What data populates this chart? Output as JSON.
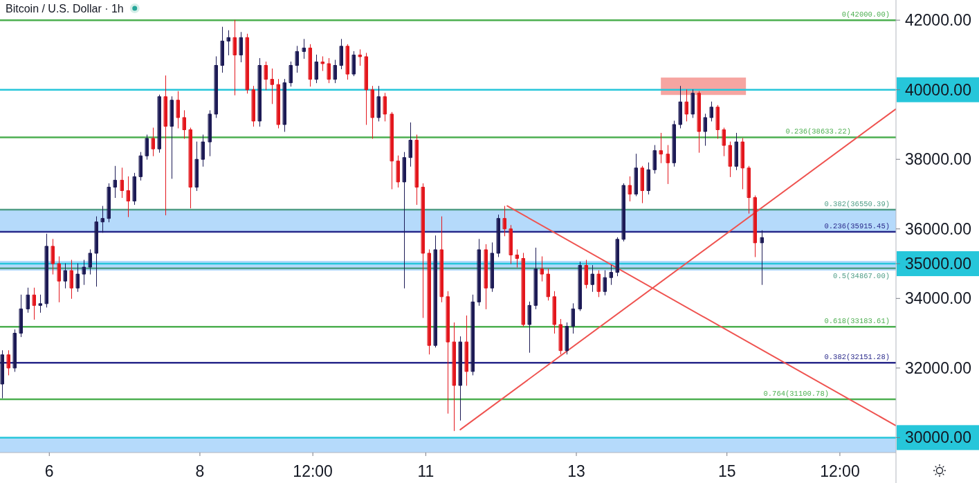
{
  "chart_data": {
    "type": "candlestick",
    "title": "Bitcoin / U.S. Dollar · 1h",
    "x": [
      "--01-05T09:00",
      "--01-05T11:00",
      "--01-05T13:00",
      "--01-05T15:00",
      "--01-05T17:00",
      "--01-05T19:00",
      "--01-05T21:00",
      "--01-05T23:00",
      "--01-06T01:00",
      "--01-06T03:00",
      "--01-06T05:00",
      "--01-06T07:00",
      "--01-06T09:00",
      "--01-06T11:00",
      "--01-06T13:00",
      "--01-06T15:00",
      "--01-06T17:00",
      "--01-06T19:00",
      "--01-06T21:00",
      "--01-06T23:00",
      "--01-07T01:00",
      "--01-07T03:00",
      "--01-07T05:00",
      "--01-07T07:00",
      "--01-07T09:00",
      "--01-07T11:00",
      "--01-07T13:00",
      "--01-07T15:00",
      "--01-07T17:00",
      "--01-07T19:00",
      "--01-07T21:00",
      "--01-07T23:00",
      "--01-08T01:00",
      "--01-08T03:00",
      "--01-08T05:00",
      "--01-08T07:00",
      "--01-08T09:00",
      "--01-08T11:00",
      "--01-08T13:00",
      "--01-08T15:00",
      "--01-08T17:00",
      "--01-08T19:00",
      "--01-08T21:00",
      "--01-08T23:00",
      "--01-09T01:00",
      "--01-09T03:00",
      "--01-09T05:00",
      "--01-09T07:00",
      "--01-09T09:00",
      "--01-09T11:00",
      "--01-09T13:00",
      "--01-09T15:00",
      "--01-09T17:00",
      "--01-09T19:00",
      "--01-09T21:00",
      "--01-09T23:00",
      "--01-10T01:00",
      "--01-10T03:00",
      "--01-10T05:00",
      "--01-10T07:00",
      "--01-10T09:00",
      "--01-10T11:00",
      "--01-10T13:00",
      "--01-10T15:00",
      "--01-10T17:00",
      "--01-10T19:00",
      "--01-10T21:00",
      "--01-10T23:00",
      "--01-11T01:00",
      "--01-11T03:00",
      "--01-11T05:00",
      "--01-11T07:00",
      "--01-11T09:00",
      "--01-11T11:00",
      "--01-11T13:00",
      "--01-11T15:00",
      "--01-11T17:00",
      "--01-11T19:00",
      "--01-11T21:00",
      "--01-11T23:00",
      "--01-12T01:00",
      "--01-12T03:00",
      "--01-12T05:00",
      "--01-12T07:00",
      "--01-12T09:00",
      "--01-12T11:00",
      "--01-12T13:00",
      "--01-12T15:00",
      "--01-12T17:00",
      "--01-12T19:00",
      "--01-12T21:00",
      "--01-12T23:00",
      "--01-13T01:00",
      "--01-13T03:00",
      "--01-13T05:00",
      "--01-13T07:00",
      "--01-13T09:00",
      "--01-13T11:00",
      "--01-13T13:00",
      "--01-13T15:00",
      "--01-13T17:00",
      "--01-13T19:00",
      "--01-13T21:00",
      "--01-13T23:00",
      "--01-14T01:00",
      "--01-14T03:00",
      "--01-14T05:00",
      "--01-14T07:00",
      "--01-14T09:00",
      "--01-14T11:00",
      "--01-14T13:00",
      "--01-14T15:00",
      "--01-14T17:00",
      "--01-14T19:00",
      "--01-14T21:00",
      "--01-14T23:00",
      "--01-15T01:00",
      "--01-15T03:00",
      "--01-15T05:00",
      "--01-15T07:00",
      "--01-15T09:00",
      "--01-15T11:00"
    ],
    "ohlc": [
      [
        31540,
        32500,
        31140,
        32380
      ],
      [
        32380,
        32500,
        31800,
        32000
      ],
      [
        32000,
        33100,
        31900,
        33000
      ],
      [
        33000,
        34100,
        32900,
        33700
      ],
      [
        33700,
        34300,
        33600,
        34100
      ],
      [
        34100,
        34300,
        33400,
        33800
      ],
      [
        33800,
        34100,
        33600,
        33850
      ],
      [
        33850,
        35850,
        33750,
        35500
      ],
      [
        35500,
        35700,
        34700,
        35000
      ],
      [
        35000,
        35200,
        33900,
        34500
      ],
      [
        34500,
        35000,
        34300,
        34800
      ],
      [
        34800,
        35100,
        34000,
        34300
      ],
      [
        34300,
        35000,
        34200,
        34700
      ],
      [
        34700,
        35100,
        34400,
        34900
      ],
      [
        34900,
        35400,
        34700,
        35300
      ],
      [
        35300,
        36350,
        34350,
        36200
      ],
      [
        36200,
        36650,
        35900,
        36300
      ],
      [
        36300,
        37300,
        36200,
        37200
      ],
      [
        37200,
        37800,
        36900,
        37400
      ],
      [
        37400,
        37750,
        36900,
        37100
      ],
      [
        37100,
        37500,
        36350,
        36800
      ],
      [
        36800,
        37600,
        36700,
        37500
      ],
      [
        37500,
        38200,
        37400,
        38100
      ],
      [
        38100,
        38700,
        38000,
        38600
      ],
      [
        38600,
        38900,
        38100,
        38300
      ],
      [
        38300,
        39850,
        38200,
        39800
      ],
      [
        39800,
        40400,
        36400,
        38950
      ],
      [
        38950,
        39800,
        37450,
        39700
      ],
      [
        39700,
        39950,
        38900,
        39200
      ],
      [
        39200,
        39400,
        38600,
        38850
      ],
      [
        38850,
        38900,
        36600,
        37200
      ],
      [
        37200,
        38500,
        37100,
        38000
      ],
      [
        38000,
        38700,
        37800,
        38500
      ],
      [
        38500,
        39400,
        38100,
        39300
      ],
      [
        39300,
        40950,
        39200,
        40700
      ],
      [
        40700,
        41800,
        40500,
        41400
      ],
      [
        41400,
        41700,
        41000,
        41500
      ],
      [
        41500,
        42000,
        39850,
        41000
      ],
      [
        41000,
        41650,
        40800,
        41500
      ],
      [
        41500,
        41600,
        39900,
        40000
      ],
      [
        40000,
        40100,
        38950,
        39100
      ],
      [
        39100,
        40900,
        38950,
        40700
      ],
      [
        40700,
        40800,
        40000,
        40300
      ],
      [
        40300,
        40600,
        39600,
        40150
      ],
      [
        40150,
        40300,
        38900,
        39000
      ],
      [
        39000,
        40300,
        38800,
        40200
      ],
      [
        40200,
        40800,
        40100,
        40700
      ],
      [
        40700,
        41250,
        40500,
        41100
      ],
      [
        41100,
        41450,
        40900,
        41200
      ],
      [
        41200,
        41300,
        40100,
        40300
      ],
      [
        40300,
        41000,
        40200,
        40800
      ],
      [
        40800,
        40950,
        40550,
        40750
      ],
      [
        40750,
        40900,
        40200,
        40300
      ],
      [
        40300,
        40850,
        40200,
        40700
      ],
      [
        40700,
        41450,
        40600,
        41250
      ],
      [
        41250,
        41300,
        40300,
        40450
      ],
      [
        40450,
        41100,
        40400,
        41000
      ],
      [
        41000,
        41150,
        40700,
        40950
      ],
      [
        40950,
        41050,
        39000,
        40000
      ],
      [
        40000,
        40100,
        38600,
        39200
      ],
      [
        39200,
        40100,
        39100,
        39800
      ],
      [
        39800,
        39900,
        39100,
        39300
      ],
      [
        39300,
        39350,
        37150,
        37950
      ],
      [
        37950,
        38100,
        37200,
        37350
      ],
      [
        37350,
        38200,
        34300,
        38050
      ],
      [
        38050,
        39050,
        37800,
        38550
      ],
      [
        38550,
        38700,
        36700,
        37200
      ],
      [
        37200,
        37300,
        33450,
        35300
      ],
      [
        35300,
        35400,
        32400,
        32650
      ],
      [
        32650,
        35800,
        32600,
        35400
      ],
      [
        35400,
        36350,
        33900,
        34050
      ],
      [
        34050,
        34200,
        30700,
        32750
      ],
      [
        32750,
        33300,
        30200,
        31500
      ],
      [
        31500,
        32900,
        30500,
        32750
      ],
      [
        32750,
        33500,
        31500,
        31900
      ],
      [
        31900,
        34100,
        31800,
        33900
      ],
      [
        33900,
        35700,
        33800,
        35400
      ],
      [
        35400,
        35550,
        33700,
        34300
      ],
      [
        34300,
        35600,
        34200,
        35300
      ],
      [
        35300,
        36400,
        35200,
        36300
      ],
      [
        36300,
        36650,
        35800,
        36000
      ],
      [
        36000,
        36100,
        35000,
        35250
      ],
      [
        35250,
        35400,
        34900,
        35150
      ],
      [
        35150,
        35300,
        33200,
        33250
      ],
      [
        33250,
        33900,
        32450,
        33800
      ],
      [
        33800,
        35450,
        33700,
        34850
      ],
      [
        34850,
        35200,
        34500,
        34700
      ],
      [
        34700,
        34850,
        33950,
        34050
      ],
      [
        34050,
        34200,
        33000,
        33250
      ],
      [
        33250,
        33400,
        32400,
        32500
      ],
      [
        32500,
        33300,
        32400,
        33200
      ],
      [
        33200,
        33850,
        33000,
        33700
      ],
      [
        33700,
        35050,
        33650,
        34950
      ],
      [
        34950,
        35100,
        34300,
        34400
      ],
      [
        34400,
        34950,
        34200,
        34700
      ],
      [
        34700,
        34800,
        34050,
        34200
      ],
      [
        34200,
        34800,
        34100,
        34600
      ],
      [
        34600,
        34950,
        34400,
        34750
      ],
      [
        34750,
        35750,
        34650,
        35700
      ],
      [
        35700,
        37300,
        35650,
        37250
      ],
      [
        37250,
        37500,
        36800,
        37000
      ],
      [
        37000,
        38150,
        36950,
        37750
      ],
      [
        37750,
        37800,
        36750,
        37100
      ],
      [
        37100,
        37900,
        37000,
        37700
      ],
      [
        37700,
        38400,
        37600,
        38250
      ],
      [
        38250,
        38750,
        37900,
        38150
      ],
      [
        38150,
        38400,
        37300,
        37900
      ],
      [
        37900,
        39100,
        37800,
        39000
      ],
      [
        39000,
        40100,
        38900,
        39650
      ],
      [
        39650,
        40000,
        39100,
        39300
      ],
      [
        39300,
        40000,
        39200,
        39900
      ],
      [
        39900,
        39950,
        38200,
        38800
      ],
      [
        38800,
        39300,
        38400,
        39200
      ],
      [
        39200,
        39650,
        39100,
        39500
      ],
      [
        39500,
        39550,
        38600,
        38850
      ],
      [
        38850,
        38900,
        38100,
        38400
      ],
      [
        38400,
        38500,
        37500,
        37800
      ],
      [
        37800,
        38750,
        37700,
        38500
      ],
      [
        38500,
        38600,
        37150,
        37750
      ],
      [
        37750,
        37800,
        36450,
        36900
      ],
      [
        36900,
        36950,
        35200,
        35600
      ],
      [
        35600,
        35950,
        34400,
        35750
      ]
    ],
    "colors": [
      "#1c1a55",
      "#e3161c",
      "#1c1a55",
      "#1c1a55",
      "#1c1a55",
      "#e3161c",
      "#1c1a55",
      "#1c1a55",
      "#e3161c",
      "#e3161c",
      "#1c1a55",
      "#e3161c",
      "#1c1a55",
      "#1c1a55",
      "#1c1a55",
      "#1c1a55",
      "#1c1a55",
      "#1c1a55",
      "#1c1a55",
      "#e3161c",
      "#e3161c",
      "#1c1a55",
      "#1c1a55",
      "#1c1a55",
      "#e3161c",
      "#1c1a55",
      "#e3161c",
      "#1c1a55",
      "#e3161c",
      "#e3161c",
      "#e3161c",
      "#1c1a55",
      "#1c1a55",
      "#1c1a55",
      "#1c1a55",
      "#1c1a55",
      "#1c1a55",
      "#e3161c",
      "#1c1a55",
      "#e3161c",
      "#e3161c",
      "#1c1a55",
      "#e3161c",
      "#e3161c",
      "#e3161c",
      "#1c1a55",
      "#1c1a55",
      "#1c1a55",
      "#1c1a55",
      "#e3161c",
      "#1c1a55",
      "#e3161c",
      "#e3161c",
      "#1c1a55",
      "#1c1a55",
      "#e3161c",
      "#1c1a55",
      "#e3161c",
      "#e3161c",
      "#e3161c",
      "#1c1a55",
      "#e3161c",
      "#e3161c",
      "#e3161c",
      "#1c1a55",
      "#1c1a55",
      "#e3161c",
      "#e3161c",
      "#e3161c",
      "#1c1a55",
      "#e3161c",
      "#e3161c",
      "#e3161c",
      "#1c1a55",
      "#e3161c",
      "#1c1a55",
      "#1c1a55",
      "#e3161c",
      "#1c1a55",
      "#1c1a55",
      "#e3161c",
      "#e3161c",
      "#e3161c",
      "#e3161c",
      "#1c1a55",
      "#1c1a55",
      "#e3161c",
      "#e3161c",
      "#e3161c",
      "#e3161c",
      "#1c1a55",
      "#1c1a55",
      "#1c1a55",
      "#e3161c",
      "#1c1a55",
      "#e3161c",
      "#1c1a55",
      "#1c1a55",
      "#1c1a55",
      "#1c1a55",
      "#e3161c",
      "#1c1a55",
      "#e3161c",
      "#1c1a55",
      "#1c1a55",
      "#e3161c",
      "#e3161c",
      "#1c1a55",
      "#1c1a55",
      "#e3161c",
      "#1c1a55",
      "#e3161c",
      "#1c1a55",
      "#1c1a55",
      "#e3161c",
      "#e3161c",
      "#e3161c",
      "#1c1a55",
      "#e3161c",
      "#e3161c",
      "#e3161c",
      "#1c1a55"
    ],
    "series": [
      {
        "type": "line",
        "x": [
          "--01-11T11:00",
          "--01-17T05:45"
        ],
        "values": [
          30230,
          39440
        ],
        "color": "#ef5350"
      },
      {
        "type": "line",
        "x": [
          "--01-12T02:00",
          "--01-17T05:45"
        ],
        "values": [
          36660,
          30350
        ],
        "color": "#ef5350"
      },
      {
        "type": "bar",
        "x": [
          "--01-14T16:30"
        ],
        "base": [
          39850
        ],
        "values": [
          500
        ],
        "color": "#f6a5a1"
      }
    ],
    "xlim": [
      "--01-05T08:17",
      "--01-17T05:53"
    ],
    "ylim": [
      29570,
      42580
    ],
    "xticks": [
      {
        "value": "--01-06",
        "label": "6"
      },
      {
        "value": "--01-08",
        "label": "8"
      },
      {
        "value": "--01-09T12:00",
        "label": "12:00"
      },
      {
        "value": "--01-11",
        "label": "11"
      },
      {
        "value": "--01-13",
        "label": "13"
      },
      {
        "value": "--01-15",
        "label": "15"
      },
      {
        "value": "--01-16T12:00",
        "label": "12:00"
      }
    ],
    "yticks": [
      {
        "value": 30000,
        "label": "30000.00"
      },
      {
        "value": 32000,
        "label": "32000.00"
      },
      {
        "value": 34000,
        "label": "34000.00"
      },
      {
        "value": 35000,
        "label": "35000.00"
      },
      {
        "value": 36000,
        "label": "36000.00"
      },
      {
        "value": 38000,
        "label": "38000.00"
      },
      {
        "value": 40000,
        "label": "40000.00"
      },
      {
        "value": 42000,
        "label": "42000.00"
      }
    ],
    "bands": [
      {
        "axis": "y",
        "from": 35915.45,
        "to": 36550.39,
        "color": "#b5dafb"
      },
      {
        "axis": "y",
        "from": 34800,
        "to": 35080,
        "color": "#b5dafb"
      },
      {
        "axis": "y",
        "from": 29570,
        "to": 30000,
        "color": "#b5dafb"
      }
    ],
    "ref_lines": [
      {
        "axis": "y",
        "value": 42000,
        "label": "0(42000.00)",
        "color": "#4caf50"
      },
      {
        "axis": "y",
        "value": 40000,
        "color": "#26c6da"
      },
      {
        "axis": "y",
        "value": 38633.22,
        "label": "0.236(38633.22)",
        "color": "#4caf50"
      },
      {
        "axis": "y",
        "value": 36550.39,
        "label": "0.382(36550.39)",
        "color": "#4f9d86"
      },
      {
        "axis": "y",
        "value": 35915.45,
        "label": "0.236(35915.45)",
        "color": "#28288a"
      },
      {
        "axis": "y",
        "value": 35000,
        "color": "#26c6da"
      },
      {
        "axis": "y",
        "value": 34867,
        "label": "0.5(34867.00)",
        "color": "#4f9d86"
      },
      {
        "axis": "y",
        "value": 33183.61,
        "label": "0.618(33183.61)",
        "color": "#4caf50"
      },
      {
        "axis": "y",
        "value": 32151.28,
        "label": "0.382(32151.28)",
        "color": "#28288a"
      },
      {
        "axis": "y",
        "value": 31100.78,
        "label": "0.764(31100.78)",
        "color": "#4caf50"
      },
      {
        "axis": "y",
        "value": 30000,
        "color": "#26c6da"
      }
    ]
  }
}
